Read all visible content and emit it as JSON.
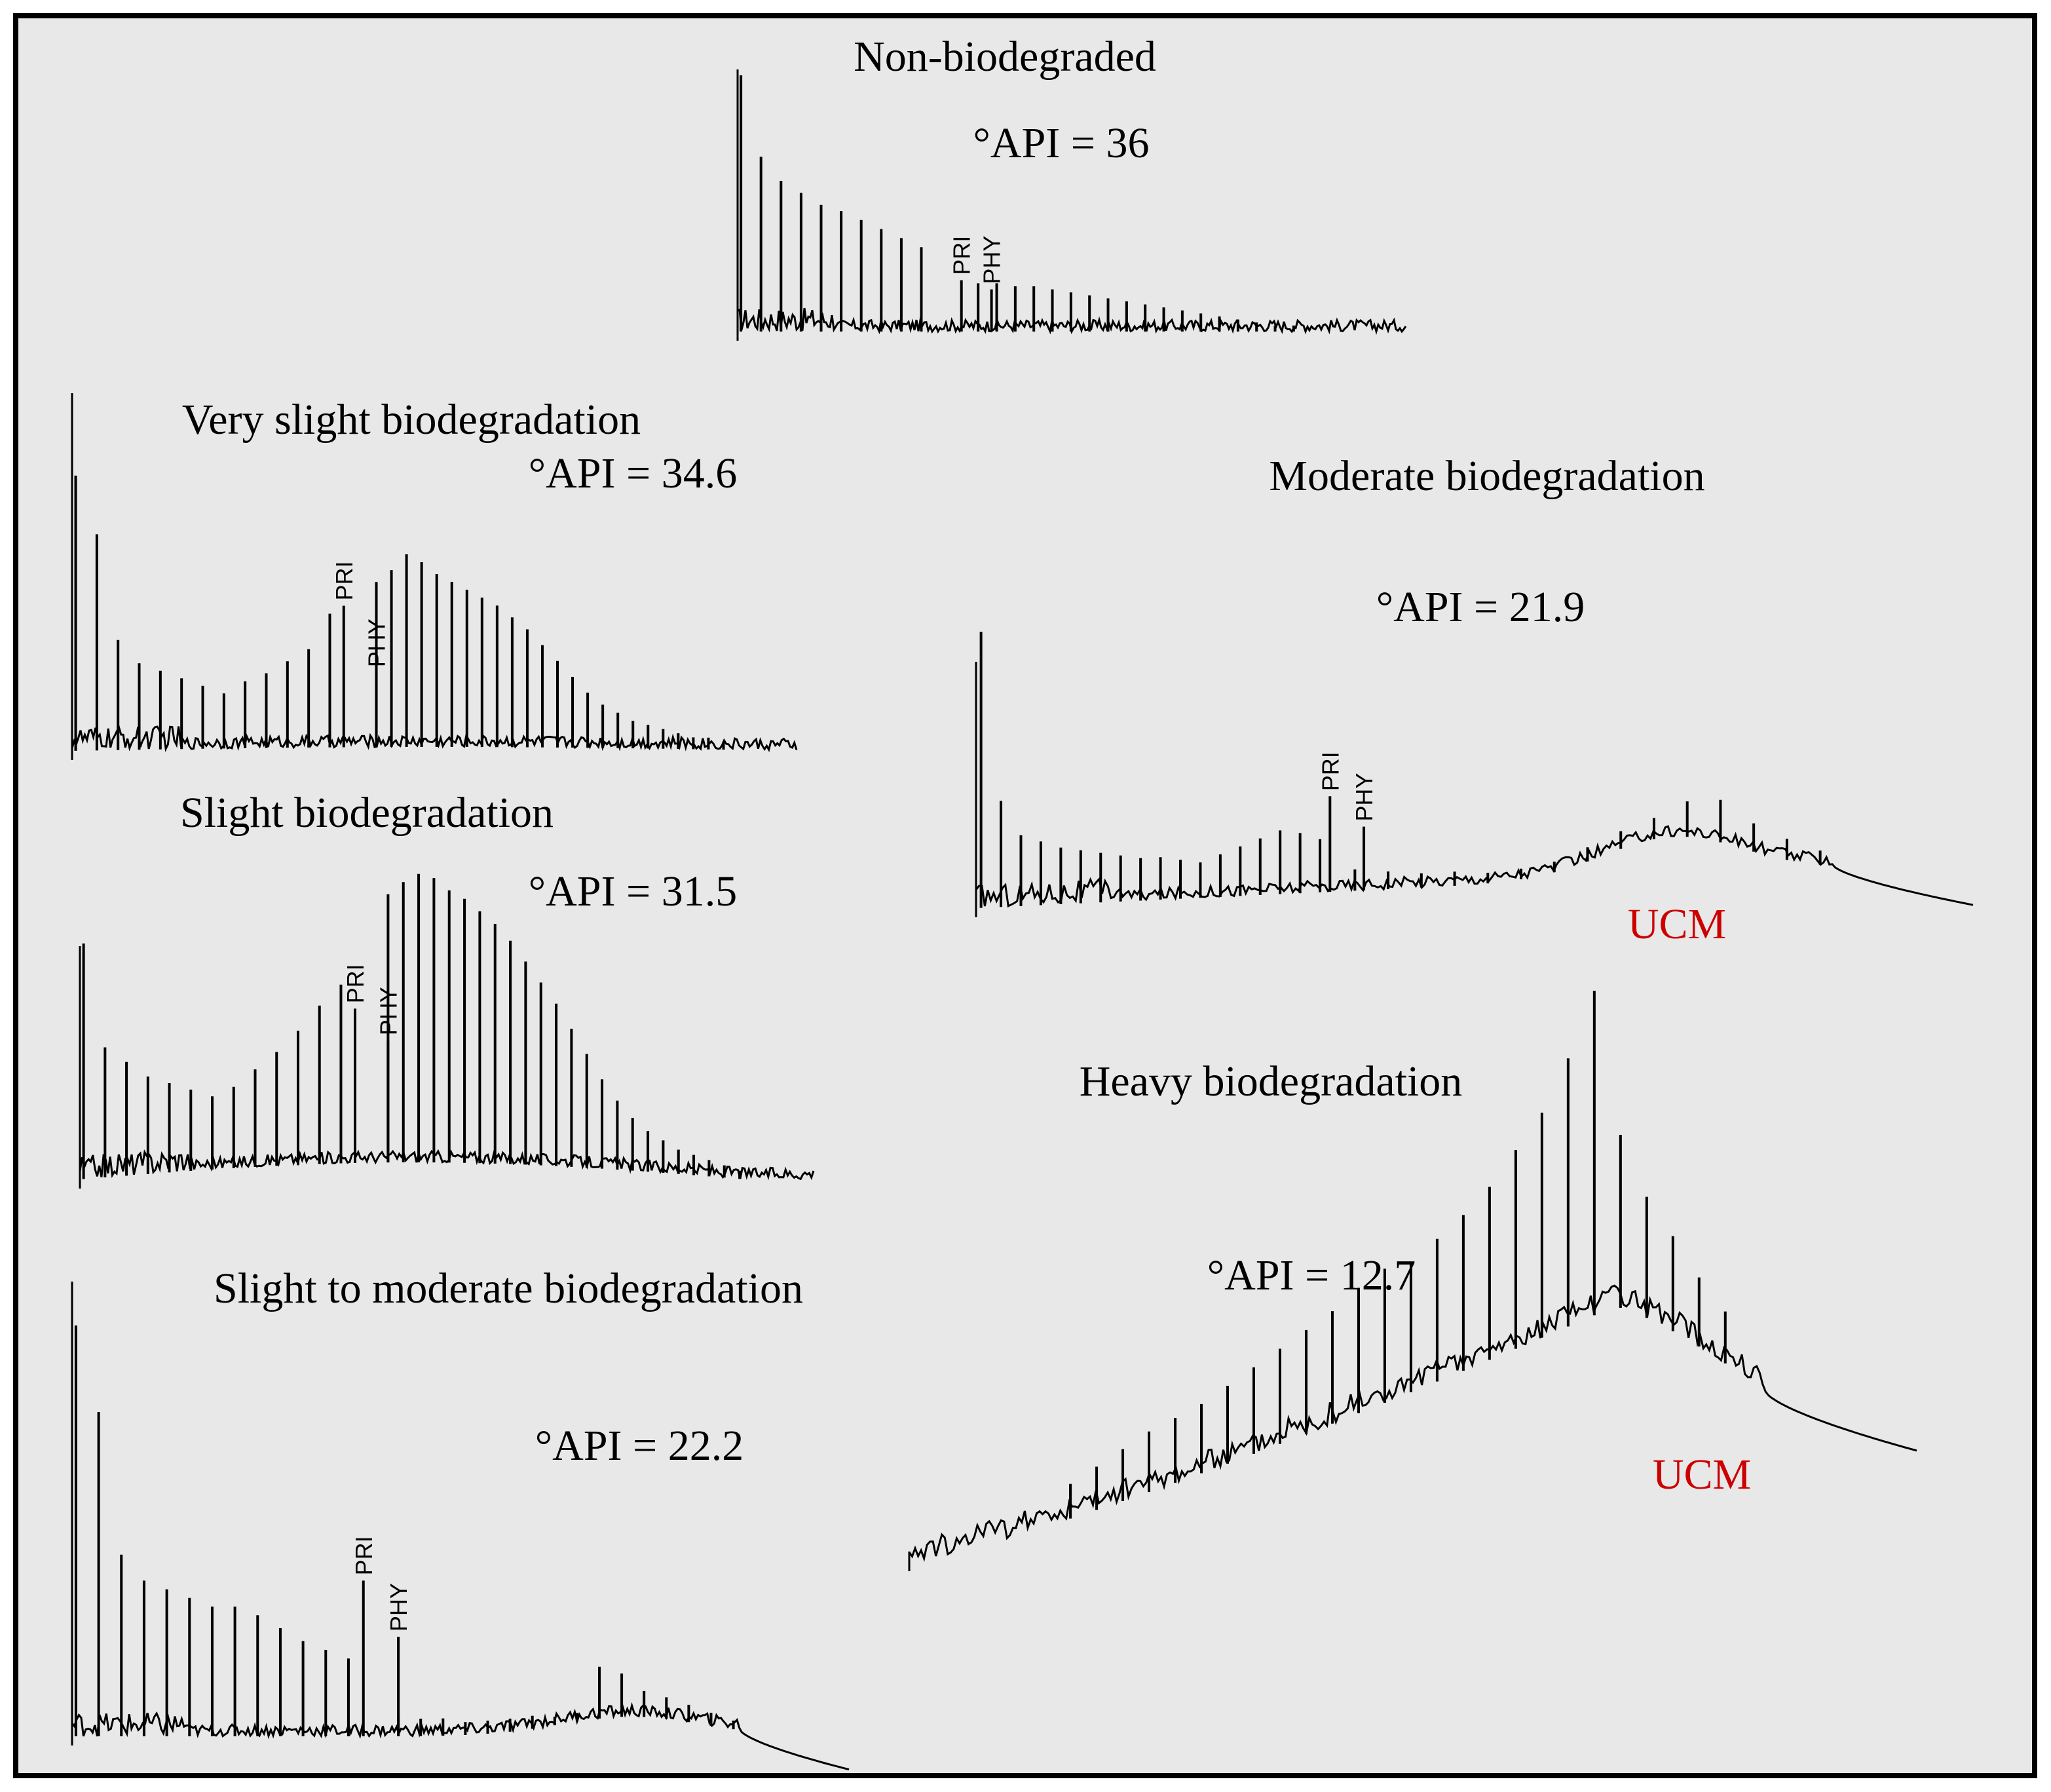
{
  "chart_data": [
    {
      "type": "line",
      "title": "Non-biodegraded",
      "api_label": "°API = 36",
      "peak_labels": [
        "PRI",
        "PHY"
      ],
      "profile": {
        "early_peaks": [
          85,
          58,
          50,
          46,
          42,
          40,
          37,
          34,
          31,
          28
        ],
        "late_peaks": [
          16,
          16,
          15,
          15,
          14,
          13,
          12,
          11,
          10,
          9,
          8,
          7,
          6,
          5,
          4,
          3,
          2,
          2
        ],
        "pri": 17,
        "phy": 14
      }
    },
    {
      "type": "line",
      "title": "Very slight biodegradation",
      "api_label": "°API = 34.6",
      "peak_labels": [
        "PRI",
        "PHY"
      ],
      "profile": {
        "early_peaks": [
          70,
          55,
          28,
          22,
          20,
          18,
          16,
          14,
          17,
          19,
          22,
          25,
          34
        ],
        "late_peaks": [
          42,
          45,
          49,
          47,
          44,
          42,
          40,
          38,
          36,
          33,
          30,
          26,
          22,
          18,
          14,
          11,
          9,
          7,
          6,
          5,
          4,
          3,
          3,
          2
        ],
        "pri": 36,
        "phy": 19
      }
    },
    {
      "type": "line",
      "title": "Slight biodegradation",
      "api_label": "°API = 31.5",
      "peak_labels": [
        "PRI",
        "PHY"
      ],
      "profile": {
        "early_peaks": [
          58,
          32,
          28,
          24,
          22,
          20,
          18,
          20,
          24,
          28,
          33,
          39,
          44
        ],
        "late_peaks": [
          66,
          69,
          71,
          70,
          67,
          65,
          62,
          59,
          55,
          50,
          45,
          40,
          34,
          28,
          22,
          17,
          13,
          10,
          8,
          6,
          5,
          4,
          3,
          2
        ],
        "pri": 38,
        "phy": 30
      }
    },
    {
      "type": "line",
      "title": "Slight to moderate biodegradation",
      "api_label": "°API = 22.2",
      "peak_labels": [
        "PRI",
        "PHY"
      ],
      "ucm_hump": true,
      "profile": {
        "early_peaks": [
          95,
          75,
          42,
          36,
          34,
          32,
          30,
          30,
          28,
          25,
          22,
          20,
          18
        ],
        "late_peaks": [
          5,
          4,
          4,
          3,
          3,
          3,
          3,
          2,
          2,
          12,
          10,
          6,
          5,
          4,
          3,
          2
        ],
        "pri": 36,
        "phy": 23
      }
    },
    {
      "type": "line",
      "title": "Moderate biodegradation",
      "api_label": "°API = 21.9",
      "peak_labels": [
        "PRI",
        "PHY"
      ],
      "annotation": "UCM",
      "ucm_hump": true,
      "profile": {
        "early_peaks": [
          78,
          30,
          20,
          18,
          16,
          15,
          14,
          13,
          12,
          12,
          11,
          10,
          12,
          14,
          16,
          18,
          17,
          15
        ],
        "late_peaks": [
          6,
          5,
          4,
          4,
          3,
          3,
          3,
          4,
          5,
          6,
          10,
          12,
          8,
          6,
          4
        ],
        "pri": 27,
        "phy": 18
      }
    },
    {
      "type": "line",
      "title": "Heavy biodegradation",
      "api_label": "°API = 12.7",
      "annotation": "UCM",
      "ucm_hump": true,
      "profile": {
        "peaks": [
          8,
          10,
          12,
          14,
          15,
          16,
          18,
          20,
          22,
          24,
          26,
          29,
          31,
          30,
          33,
          36,
          40,
          46,
          52,
          62,
          75,
          40,
          28,
          22,
          16,
          12
        ]
      }
    }
  ],
  "colors": {
    "frame": "#000000",
    "panel": "#e8e8e8",
    "trace": "#000000",
    "ucm": "#cc0000"
  }
}
